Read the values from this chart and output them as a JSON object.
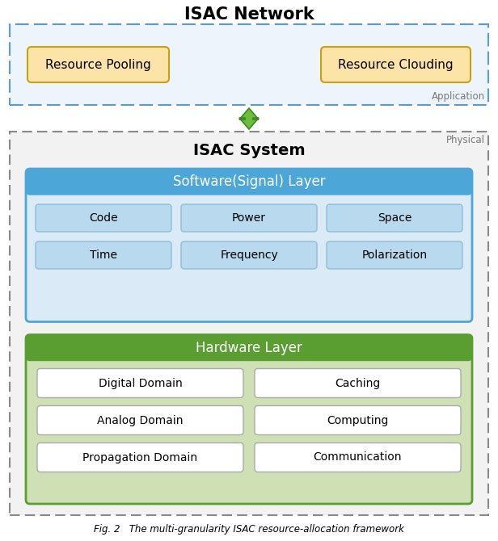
{
  "title": "ISAC Network",
  "isac_system_title": "ISAC System",
  "software_layer_title": "Software(Signal) Layer",
  "hardware_layer_title": "Hardware Layer",
  "application_label": "Application",
  "physical_label": "Physical",
  "caption": "Fig. 2   The multi-granularity ISAC resource-allocation framework",
  "resource_boxes": [
    "Resource Pooling",
    "Resource Clouding"
  ],
  "software_items_row1": [
    "Code",
    "Power",
    "Space"
  ],
  "software_items_row2": [
    "Time",
    "Frequency",
    "Polarization"
  ],
  "hardware_items_col1": [
    "Digital Domain",
    "Analog Domain",
    "Propagation Domain"
  ],
  "hardware_items_col2": [
    "Caching",
    "Computing",
    "Communication"
  ],
  "color_network_bg": "#f0f4f8",
  "color_network_border": "#5b9bd5",
  "color_resource_box": "#fce4a8",
  "color_resource_border": "#c8a010",
  "color_physical_bg": "#f0f0f0",
  "color_physical_border": "#666666",
  "color_software_header": "#4da6d8",
  "color_software_header_text": "#ffffff",
  "color_software_bg": "#daeaf7",
  "color_software_item_bg": "#b8d9ee",
  "color_software_item_border": "#90bdd4",
  "color_hardware_header": "#5a9e32",
  "color_hardware_header_text": "#ffffff",
  "color_hardware_bg": "#cfe0b4",
  "color_hardware_item_bg": "#ffffff",
  "color_hardware_item_border": "#aaaaaa",
  "arrow_color_dark": "#3a8a1e",
  "arrow_color_light": "#6cbd3e",
  "title_fontsize": 15,
  "label_fontsize": 11,
  "header_fontsize": 12,
  "small_fontsize": 8.5,
  "item_fontsize": 10
}
